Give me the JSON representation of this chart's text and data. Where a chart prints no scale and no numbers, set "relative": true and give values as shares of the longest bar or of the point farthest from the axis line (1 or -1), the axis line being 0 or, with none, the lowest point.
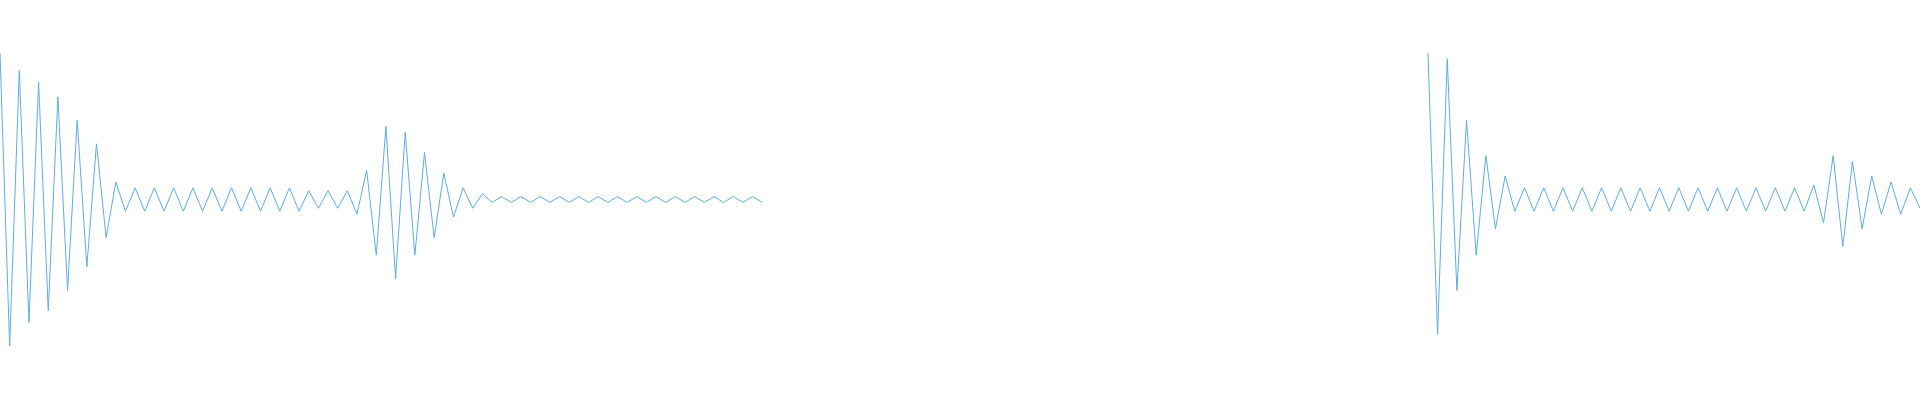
{
  "chart_data": {
    "type": "line",
    "relative": true,
    "categories": [
      null,
      null,
      null,
      null,
      null,
      null,
      null,
      null,
      null,
      null,
      null,
      null,
      null,
      null,
      null,
      null,
      null,
      null,
      null,
      null,
      null,
      null,
      null,
      null,
      null,
      null,
      null,
      null,
      null,
      null,
      null,
      null,
      null,
      null,
      null,
      null,
      null,
      null,
      null,
      null,
      null,
      null,
      null,
      null,
      null,
      null,
      null,
      null,
      null,
      null,
      null,
      null,
      null,
      null,
      null,
      null,
      null,
      null,
      null,
      null,
      null,
      null,
      null,
      null,
      null,
      null,
      null,
      null,
      null,
      null,
      null,
      null,
      null,
      null,
      null,
      null,
      null,
      null,
      null,
      null,
      null,
      null,
      null,
      null,
      null,
      null,
      null,
      null,
      null,
      null,
      null,
      null,
      null,
      null,
      null,
      null,
      null,
      null,
      null,
      null,
      null,
      null,
      null,
      null,
      null,
      null,
      null,
      null,
      null,
      null,
      null,
      null,
      null,
      null,
      null,
      null,
      null,
      null,
      null,
      null,
      null,
      null,
      null,
      null,
      null,
      null,
      null,
      null,
      null,
      null,
      null,
      null,
      null,
      null,
      null,
      null,
      null,
      null,
      null,
      null,
      null,
      null,
      null,
      null,
      null,
      null,
      null,
      null,
      null,
      null,
      null,
      null,
      null,
      null,
      null,
      null,
      null,
      null,
      null,
      null,
      null,
      null,
      null,
      null,
      null,
      null,
      null,
      null,
      null,
      null,
      null,
      null,
      null,
      null,
      null,
      null,
      null,
      null,
      null,
      null,
      null,
      null,
      null,
      null,
      null,
      null,
      null,
      null,
      null,
      null,
      null,
      null,
      null,
      null,
      null,
      null,
      null,
      null,
      null,
      null
    ],
    "series": [
      {
        "color": "#5dade2",
        "values": [
          1.0,
          0.0,
          0.94,
          0.08,
          0.9,
          0.12,
          0.85,
          0.19,
          0.77,
          0.27,
          0.69,
          0.37,
          0.56,
          0.46,
          0.54,
          0.46,
          0.54,
          0.46,
          0.54,
          0.46,
          0.54,
          0.46,
          0.54,
          0.46,
          0.54,
          0.46,
          0.54,
          0.46,
          0.54,
          0.46,
          0.54,
          0.46,
          0.53,
          0.47,
          0.53,
          0.47,
          0.53,
          0.45,
          0.6,
          0.31,
          0.75,
          0.23,
          0.73,
          0.31,
          0.66,
          0.37,
          0.59,
          0.44,
          0.54,
          0.47,
          0.52,
          0.49,
          0.51,
          0.49,
          0.51,
          0.49,
          0.51,
          0.49,
          0.51,
          0.49,
          0.51,
          0.49,
          0.51,
          0.49,
          0.51,
          0.49,
          0.51,
          0.49,
          0.51,
          0.49,
          0.51,
          0.49,
          0.51,
          0.49,
          0.51,
          0.49,
          0.51,
          0.49,
          0.51,
          0.49,
          null,
          null,
          null,
          null,
          null,
          null,
          null,
          null,
          null,
          null,
          null,
          null,
          null,
          null,
          null,
          null,
          null,
          null,
          null,
          null,
          null,
          null,
          null,
          null,
          null,
          null,
          null,
          null,
          null,
          null,
          null,
          null,
          null,
          null,
          null,
          null,
          null,
          null,
          null,
          null,
          null,
          null,
          null,
          null,
          null,
          null,
          null,
          null,
          null,
          null,
          null,
          null,
          null,
          null,
          null,
          null,
          null,
          null,
          null,
          null,
          null,
          null,
          null,
          null,
          null,
          null,
          null,
          null,
          null,
          null,
          null,
          null,
          null,
          null,
          null,
          null,
          null,
          null,
          null,
          null,
          null,
          null,
          null,
          null,
          null,
          null,
          null,
          null,
          null,
          null,
          null,
          null,
          null,
          null,
          null,
          null,
          null,
          null,
          null,
          null,
          null,
          null,
          null,
          null,
          null,
          null,
          null,
          null,
          null,
          null,
          null,
          null,
          null,
          null,
          null,
          null,
          null,
          null,
          null,
          null
        ]
      },
      {
        "color": "#5dade2",
        "values": [
          null,
          null,
          null,
          null,
          null,
          null,
          null,
          null,
          null,
          null,
          null,
          null,
          null,
          null,
          null,
          null,
          null,
          null,
          null,
          null,
          null,
          null,
          null,
          null,
          null,
          null,
          null,
          null,
          null,
          null,
          null,
          null,
          null,
          null,
          null,
          null,
          null,
          null,
          null,
          null,
          null,
          null,
          null,
          null,
          null,
          null,
          null,
          null,
          null,
          null,
          null,
          null,
          null,
          null,
          null,
          null,
          null,
          null,
          null,
          null,
          null,
          null,
          null,
          null,
          null,
          null,
          null,
          null,
          null,
          null,
          null,
          null,
          null,
          null,
          null,
          null,
          null,
          null,
          null,
          null,
          null,
          null,
          null,
          null,
          null,
          null,
          null,
          null,
          null,
          null,
          null,
          null,
          null,
          null,
          null,
          null,
          null,
          null,
          null,
          null,
          null,
          null,
          null,
          null,
          null,
          null,
          null,
          null,
          null,
          null,
          null,
          null,
          null,
          null,
          null,
          null,
          null,
          null,
          null,
          null,
          null,
          null,
          null,
          null,
          null,
          null,
          null,
          null,
          null,
          null,
          null,
          null,
          null,
          null,
          null,
          null,
          null,
          null,
          null,
          null,
          null,
          null,
          null,
          null,
          null,
          null,
          null,
          null,
          1.0,
          0.04,
          0.98,
          0.19,
          0.77,
          0.31,
          0.65,
          0.4,
          0.58,
          0.46,
          0.54,
          0.46,
          0.54,
          0.46,
          0.54,
          0.46,
          0.54,
          0.46,
          0.54,
          0.46,
          0.54,
          0.46,
          0.54,
          0.46,
          0.54,
          0.46,
          0.54,
          0.46,
          0.54,
          0.46,
          0.54,
          0.46,
          0.54,
          0.46,
          0.54,
          0.46,
          0.54,
          0.46,
          0.54,
          0.46,
          0.55,
          0.42,
          0.65,
          0.34,
          0.63,
          0.4,
          0.58,
          0.45,
          0.56,
          0.45,
          0.54,
          0.47
        ]
      }
    ]
  }
}
